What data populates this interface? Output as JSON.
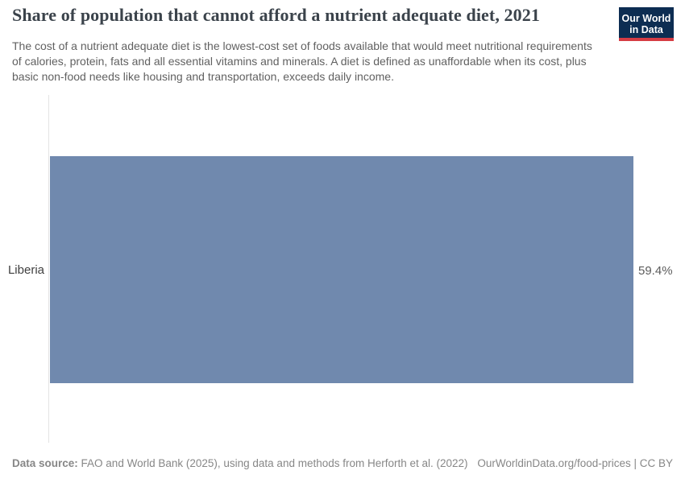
{
  "header": {
    "title": "Share of population that cannot afford a nutrient adequate diet, 2021",
    "subtitle": "The cost of a nutrient adequate diet is the lowest-cost set of foods available that would meet nutritional requirements of calories, protein, fats and all essential vitamins and minerals. A diet is defined as unaffordable when its cost, plus basic non-food needs like housing and transportation, exceeds daily income.",
    "logo": {
      "line1": "Our World",
      "line2": "in Data"
    }
  },
  "chart_data": {
    "type": "bar",
    "orientation": "horizontal",
    "title": "Share of population that cannot afford a nutrient adequate diet, 2021",
    "categories": [
      "Liberia"
    ],
    "values": [
      59.4
    ],
    "value_labels": [
      "59.4%"
    ],
    "unit": "%",
    "year": "2021",
    "xlim": [
      0,
      59.4
    ],
    "grid": false,
    "legend": false
  },
  "footer": {
    "source_label": "Data source:",
    "source_text": "FAO and World Bank (2025), using data and methods from Herforth et al. (2022)",
    "link_text": "OurWorldinData.org/food-prices | CC BY"
  },
  "colors": {
    "bar": "#7089ae",
    "axis_line": "#e3e3e3",
    "title_text": "#3b434b",
    "subtitle_text": "#616161",
    "footer_text": "#878787",
    "logo_background": "#0d2d52",
    "logo_accent": "#d63c44"
  }
}
